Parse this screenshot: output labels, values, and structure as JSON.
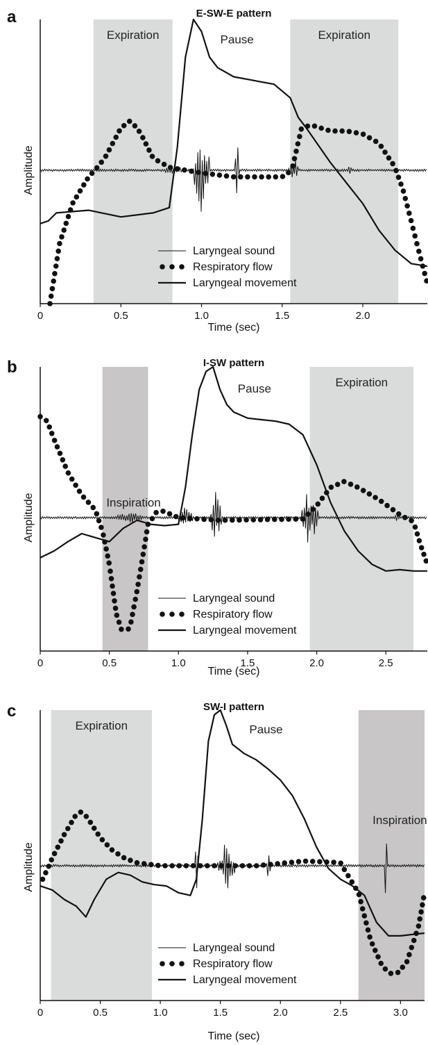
{
  "chart_data": [
    {
      "type": "line",
      "panel_label": "a",
      "title": "E-SW-E pattern",
      "xlabel": "Time (sec)",
      "ylabel": "Amplitude",
      "xlim": [
        0,
        2.4
      ],
      "ylim": [
        -1,
        1
      ],
      "x_ticks": [
        "0",
        "0.5",
        "1.0",
        "1.5",
        "2.0"
      ],
      "x_tick_values": [
        0,
        0.5,
        1.0,
        1.5,
        2.0
      ],
      "shaded_regions": [
        {
          "label": "Expiration",
          "x_range": [
            0.33,
            0.82
          ],
          "shade": "#dadbdb"
        },
        {
          "label": "Expiration",
          "x_range": [
            1.55,
            2.22
          ],
          "shade": "#dadbdb"
        }
      ],
      "annotations": [
        {
          "text": "Pause",
          "x": 1.22,
          "y": 0.84
        }
      ],
      "legend": {
        "position": "bottom-center",
        "entries": [
          "Laryngeal sound",
          "Respiratory flow",
          "Laryngeal movement"
        ]
      },
      "sound_bursts": [
        {
          "x": 0.82,
          "amp": 0.05,
          "width": 0.12
        },
        {
          "x": 1.0,
          "amp": 0.4,
          "width": 0.1
        },
        {
          "x": 1.22,
          "amp": 0.33,
          "width": 0.03
        },
        {
          "x": 1.57,
          "amp": 0.12,
          "width": 0.06
        },
        {
          "x": 1.92,
          "amp": 0.08,
          "width": 0.02
        }
      ],
      "series": [
        {
          "name": "Respiratory flow",
          "style": "dots",
          "x": [
            0.06,
            0.12,
            0.2,
            0.3,
            0.4,
            0.5,
            0.56,
            0.62,
            0.7,
            0.8,
            0.9,
            1.0,
            1.2,
            1.5,
            1.56,
            1.62,
            1.68,
            1.8,
            1.9,
            2.0,
            2.1,
            2.2,
            2.25,
            2.3,
            2.35,
            2.4
          ],
          "y": [
            -1.0,
            -0.55,
            -0.25,
            -0.05,
            0.08,
            0.28,
            0.33,
            0.25,
            0.08,
            0.02,
            0.0,
            -0.02,
            -0.05,
            -0.05,
            0.0,
            0.28,
            0.3,
            0.26,
            0.26,
            0.24,
            0.18,
            0.02,
            -0.15,
            -0.38,
            -0.62,
            -0.85
          ]
        },
        {
          "name": "Laryngeal movement",
          "style": "line",
          "x": [
            0,
            0.05,
            0.1,
            0.3,
            0.5,
            0.7,
            0.8,
            0.85,
            0.9,
            0.95,
            1.0,
            1.05,
            1.1,
            1.2,
            1.3,
            1.45,
            1.55,
            1.6,
            1.65,
            1.8,
            2.0,
            2.1,
            2.2,
            2.3,
            2.4
          ],
          "y": [
            -0.4,
            -0.38,
            -0.32,
            -0.3,
            -0.35,
            -0.32,
            -0.28,
            0.15,
            0.75,
            1.0,
            0.92,
            0.75,
            0.68,
            0.62,
            0.6,
            0.57,
            0.48,
            0.35,
            0.28,
            0.05,
            -0.25,
            -0.45,
            -0.6,
            -0.7,
            -0.72
          ]
        }
      ]
    },
    {
      "type": "line",
      "panel_label": "b",
      "title": "I-SW pattern",
      "xlabel": "Time (sec)",
      "ylabel": "Amplitude",
      "xlim": [
        0,
        2.8
      ],
      "ylim": [
        -1,
        1
      ],
      "x_ticks": [
        "0",
        "0.5",
        "1.0",
        "1.5",
        "2.0",
        "2.5"
      ],
      "x_tick_values": [
        0,
        0.5,
        1.0,
        1.5,
        2.0,
        2.5
      ],
      "shaded_regions": [
        {
          "label": "Inspiration",
          "x_range": [
            0.45,
            0.78
          ],
          "shade": "#c8c6c6"
        },
        {
          "label": "Expiration",
          "x_range": [
            1.95,
            2.7
          ],
          "shade": "#dadbdb"
        }
      ],
      "annotations": [
        {
          "text": "Pause",
          "x": 1.55,
          "y": 0.83
        }
      ],
      "legend": {
        "position": "bottom-center",
        "entries": [
          "Laryngeal sound",
          "Respiratory flow",
          "Laryngeal movement"
        ]
      },
      "sound_bursts": [
        {
          "x": 0.65,
          "amp": 0.06,
          "width": 0.2
        },
        {
          "x": 1.05,
          "amp": 0.12,
          "width": 0.1
        },
        {
          "x": 1.27,
          "amp": 0.22,
          "width": 0.08
        },
        {
          "x": 1.95,
          "amp": 0.3,
          "width": 0.12
        },
        {
          "x": 2.58,
          "amp": 0.04,
          "width": 0.04
        }
      ],
      "series": [
        {
          "name": "Respiratory flow",
          "style": "dots",
          "x": [
            0,
            0.05,
            0.1,
            0.2,
            0.3,
            0.4,
            0.45,
            0.5,
            0.55,
            0.6,
            0.65,
            0.7,
            0.78,
            0.85,
            0.9,
            1.0,
            1.3,
            1.9,
            2.0,
            2.1,
            2.2,
            2.3,
            2.45,
            2.6,
            2.7,
            2.75,
            2.8
          ],
          "y": [
            0.67,
            0.64,
            0.52,
            0.3,
            0.15,
            0.05,
            -0.1,
            -0.35,
            -0.72,
            -0.88,
            -0.82,
            -0.55,
            -0.05,
            0.05,
            0.04,
            0.0,
            -0.02,
            -0.01,
            0.08,
            0.2,
            0.24,
            0.2,
            0.12,
            0.02,
            -0.03,
            -0.2,
            -0.35
          ]
        },
        {
          "name": "Laryngeal movement",
          "style": "line",
          "x": [
            0,
            0.1,
            0.2,
            0.3,
            0.4,
            0.5,
            0.6,
            0.7,
            0.8,
            0.9,
            1.0,
            1.05,
            1.1,
            1.15,
            1.2,
            1.25,
            1.3,
            1.35,
            1.4,
            1.5,
            1.6,
            1.7,
            1.8,
            1.9,
            2.0,
            2.1,
            2.2,
            2.3,
            2.4,
            2.5,
            2.6,
            2.7,
            2.8
          ],
          "y": [
            -0.3,
            -0.25,
            -0.18,
            -0.12,
            -0.15,
            -0.18,
            -0.08,
            -0.02,
            -0.05,
            -0.06,
            -0.05,
            0.2,
            0.55,
            0.85,
            0.97,
            1.0,
            0.85,
            0.75,
            0.7,
            0.66,
            0.65,
            0.64,
            0.62,
            0.55,
            0.35,
            0.1,
            -0.1,
            -0.25,
            -0.35,
            -0.4,
            -0.39,
            -0.4,
            -0.4
          ]
        }
      ]
    },
    {
      "type": "line",
      "panel_label": "c",
      "title": "SW-I pattern",
      "xlabel": "Time (sec)",
      "ylabel": "Amplitude",
      "xlim": [
        0,
        3.2
      ],
      "ylim": [
        -1,
        1
      ],
      "x_ticks": [
        "0",
        "0.5",
        "1.0",
        "1.5",
        "2.0",
        "2.5",
        "3.0"
      ],
      "x_tick_values": [
        0,
        0.5,
        1.0,
        1.5,
        2.0,
        2.5,
        3.0
      ],
      "shaded_regions": [
        {
          "label": "Expiration",
          "x_range": [
            0.09,
            0.93
          ],
          "shade": "#dadbdb"
        },
        {
          "label": "Inspiration",
          "x_range": [
            2.65,
            3.2
          ],
          "shade": "#c8c6c6"
        }
      ],
      "annotations": [
        {
          "text": "Pause",
          "x": 1.88,
          "y": 0.85
        }
      ],
      "legend": {
        "position": "bottom-center",
        "entries": [
          "Laryngeal sound",
          "Respiratory flow",
          "Laryngeal movement"
        ]
      },
      "sound_bursts": [
        {
          "x": 1.3,
          "amp": 0.32,
          "width": 0.03
        },
        {
          "x": 1.55,
          "amp": 0.18,
          "width": 0.15
        },
        {
          "x": 1.9,
          "amp": 0.14,
          "width": 0.03
        },
        {
          "x": 2.88,
          "amp": 0.3,
          "width": 0.02
        }
      ],
      "series": [
        {
          "name": "Respiratory flow",
          "style": "dots",
          "x": [
            0.02,
            0.1,
            0.2,
            0.3,
            0.35,
            0.4,
            0.5,
            0.6,
            0.7,
            0.8,
            0.9,
            1.0,
            1.2,
            1.5,
            1.8,
            2.2,
            2.5,
            2.65,
            2.75,
            2.85,
            2.95,
            3.05,
            3.15,
            3.2
          ],
          "y": [
            -0.1,
            0.05,
            0.2,
            0.33,
            0.35,
            0.3,
            0.18,
            0.1,
            0.05,
            0.02,
            0.01,
            0.0,
            0.0,
            0.0,
            0.0,
            0.03,
            0.02,
            -0.2,
            -0.55,
            -0.75,
            -0.82,
            -0.72,
            -0.45,
            -0.2
          ]
        },
        {
          "name": "Laryngeal movement",
          "style": "line",
          "x": [
            0,
            0.1,
            0.2,
            0.3,
            0.38,
            0.45,
            0.55,
            0.65,
            0.75,
            0.85,
            0.95,
            1.05,
            1.15,
            1.25,
            1.3,
            1.35,
            1.4,
            1.45,
            1.5,
            1.55,
            1.6,
            1.7,
            1.8,
            1.9,
            2.0,
            2.1,
            2.2,
            2.3,
            2.4,
            2.5,
            2.6,
            2.7,
            2.8,
            2.9,
            3.0,
            3.1,
            3.2
          ],
          "y": [
            -0.15,
            -0.18,
            -0.25,
            -0.3,
            -0.38,
            -0.25,
            -0.1,
            -0.05,
            -0.07,
            -0.12,
            -0.14,
            -0.15,
            -0.2,
            -0.22,
            -0.1,
            0.3,
            0.8,
            0.97,
            1.0,
            0.9,
            0.78,
            0.72,
            0.68,
            0.62,
            0.55,
            0.45,
            0.3,
            0.12,
            -0.02,
            -0.1,
            -0.15,
            -0.22,
            -0.42,
            -0.52,
            -0.52,
            -0.51,
            -0.5
          ]
        }
      ]
    }
  ]
}
